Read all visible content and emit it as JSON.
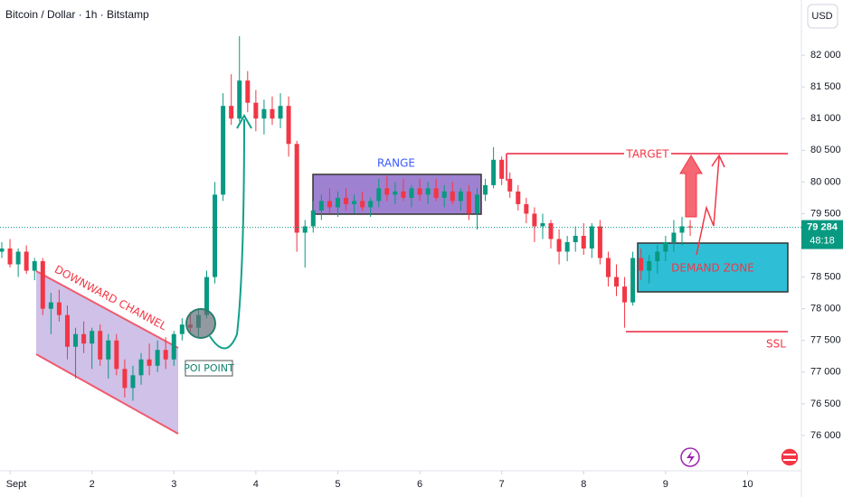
{
  "chart_data": {
    "type": "candlestick",
    "title": "Bitcoin / Dollar · 1h · Bitstamp",
    "currency": "USD",
    "up_color": "#089981",
    "down_color": "#f23645",
    "x": [
      0.9,
      1.0,
      1.1,
      1.2,
      1.3,
      1.4,
      1.5,
      1.6,
      1.7,
      1.8,
      1.9,
      2.0,
      2.1,
      2.2,
      2.3,
      2.4,
      2.5,
      2.6,
      2.7,
      2.8,
      2.9,
      3.0,
      3.1,
      3.2,
      3.3,
      3.4,
      3.5,
      3.6,
      3.7,
      3.8,
      3.9,
      4.0,
      4.1,
      4.2,
      4.3,
      4.4,
      4.5,
      4.6,
      4.7,
      4.8,
      4.9,
      5.0,
      5.1,
      5.2,
      5.3,
      5.4,
      5.5,
      5.6,
      5.7,
      5.8,
      5.9,
      6.0,
      6.1,
      6.2,
      6.3,
      6.4,
      6.5,
      6.6,
      6.7,
      6.8,
      6.9,
      7.0,
      7.1,
      7.2,
      7.3,
      7.4,
      7.5,
      7.6,
      7.7,
      7.8,
      7.9,
      8.0,
      8.1,
      8.2,
      8.3,
      8.4,
      8.5,
      8.6,
      8.7,
      8.8,
      8.9,
      9.0,
      9.1,
      9.2,
      9.3
    ],
    "open": [
      78900,
      78950,
      78700,
      78900,
      78600,
      78750,
      78000,
      78100,
      77900,
      77400,
      77600,
      77450,
      77650,
      77200,
      77500,
      77050,
      76750,
      76950,
      77200,
      77100,
      77350,
      77200,
      77600,
      77750,
      77700,
      77900,
      78500,
      79800,
      81200,
      81000,
      81600,
      81250,
      81000,
      81150,
      81000,
      81200,
      80600,
      79200,
      79300,
      79550,
      79700,
      79600,
      79750,
      79650,
      79700,
      79600,
      79700,
      79900,
      79800,
      79850,
      79750,
      79900,
      79800,
      79900,
      79750,
      79850,
      79700,
      79850,
      79500,
      79800,
      79950,
      80350,
      80050,
      79850,
      79650,
      79500,
      79300,
      79350,
      79100,
      78900,
      79050,
      79150,
      78950,
      79300,
      78800,
      78500,
      78350,
      78100,
      78800,
      78600,
      78750,
      78900,
      79050,
      79200,
      79300
    ],
    "high": [
      79050,
      79100,
      78950,
      79000,
      78800,
      78800,
      78250,
      78300,
      78050,
      77700,
      77800,
      77700,
      77750,
      77600,
      77600,
      77200,
      77100,
      77300,
      77450,
      77500,
      77550,
      77650,
      77850,
      77950,
      78000,
      78600,
      80000,
      81400,
      81700,
      82300,
      81750,
      81450,
      81300,
      81350,
      81400,
      81350,
      80650,
      79400,
      79700,
      79800,
      79900,
      79850,
      79900,
      79800,
      79850,
      79750,
      80050,
      80100,
      80000,
      80050,
      79950,
      80050,
      80000,
      80050,
      79950,
      80000,
      79900,
      79950,
      79900,
      80050,
      80550,
      80400,
      80150,
      79950,
      79750,
      79600,
      79500,
      79400,
      79250,
      79150,
      79300,
      79350,
      79350,
      79400,
      78900,
      78700,
      78500,
      78900,
      78950,
      78850,
      79000,
      79150,
      79400,
      79450,
      79400
    ],
    "low": [
      78800,
      78650,
      78500,
      78550,
      78450,
      77900,
      77600,
      77800,
      77200,
      76900,
      77300,
      77050,
      77100,
      76900,
      76950,
      76600,
      76550,
      76800,
      76950,
      77000,
      77050,
      77100,
      77500,
      77600,
      77550,
      77850,
      78400,
      79700,
      80900,
      80950,
      81100,
      80800,
      80750,
      80900,
      80850,
      80400,
      78900,
      78650,
      79200,
      79400,
      79500,
      79450,
      79550,
      79500,
      79550,
      79450,
      79600,
      79700,
      79650,
      79700,
      79600,
      79700,
      79650,
      79700,
      79600,
      79650,
      79550,
      79400,
      79250,
      79700,
      79900,
      79950,
      79750,
      79550,
      79350,
      79050,
      79100,
      78950,
      78700,
      78750,
      78900,
      78850,
      78800,
      78700,
      78350,
      78200,
      77700,
      78050,
      78450,
      78400,
      78550,
      78750,
      78900,
      79000,
      79150
    ],
    "close": [
      78950,
      78700,
      78900,
      78600,
      78750,
      78000,
      78100,
      77900,
      77400,
      77600,
      77450,
      77650,
      77200,
      77500,
      77050,
      76750,
      76950,
      77200,
      77100,
      77350,
      77200,
      77600,
      77750,
      77700,
      77900,
      78500,
      79800,
      81200,
      81000,
      81600,
      81250,
      81000,
      81150,
      81000,
      81200,
      80600,
      79200,
      79300,
      79550,
      79700,
      79600,
      79750,
      79650,
      79700,
      79600,
      79700,
      79900,
      79800,
      79850,
      79750,
      79900,
      79800,
      79900,
      79750,
      79850,
      79700,
      79850,
      79500,
      79800,
      79950,
      80350,
      80050,
      79850,
      79650,
      79500,
      79300,
      79350,
      79100,
      78900,
      79050,
      79150,
      78950,
      79300,
      78800,
      78500,
      78350,
      78100,
      78800,
      78600,
      78750,
      78900,
      79050,
      79200,
      79300,
      79284
    ],
    "last_price_label": "79 284",
    "countdown": "48:18",
    "xlim": [
      0.878,
      10.657
    ],
    "xticks": [
      {
        "value": 1,
        "label": "Sept"
      },
      2,
      3,
      4,
      5,
      6,
      7,
      8,
      9,
      10
    ],
    "ylim": [
      75443,
      82871
    ],
    "yticks": [
      {
        "value": 76000,
        "label": "76 000"
      },
      {
        "value": 76500,
        "label": "76 500"
      },
      {
        "value": 77000,
        "label": "77 000"
      },
      {
        "value": 77500,
        "label": "77 500"
      },
      {
        "value": 78000,
        "label": "78 000"
      },
      {
        "value": 78500,
        "label": "78 500"
      },
      {
        "value": 79000,
        "label": "79 000"
      },
      {
        "value": 79500,
        "label": "79 500"
      },
      {
        "value": 80000,
        "label": "80 000"
      },
      {
        "value": 80500,
        "label": "80 500"
      },
      {
        "value": 81000,
        "label": "81 000"
      },
      {
        "value": 81500,
        "label": "81 500"
      },
      {
        "value": 82000,
        "label": "82 000"
      }
    ],
    "annotations": {
      "channel": "DOWNWARD CHANNEL",
      "range": "RANGE",
      "poi": "POI POINT",
      "target": "TARGET",
      "demand": "DEMAND ZONE",
      "ssl": "SSL"
    }
  }
}
